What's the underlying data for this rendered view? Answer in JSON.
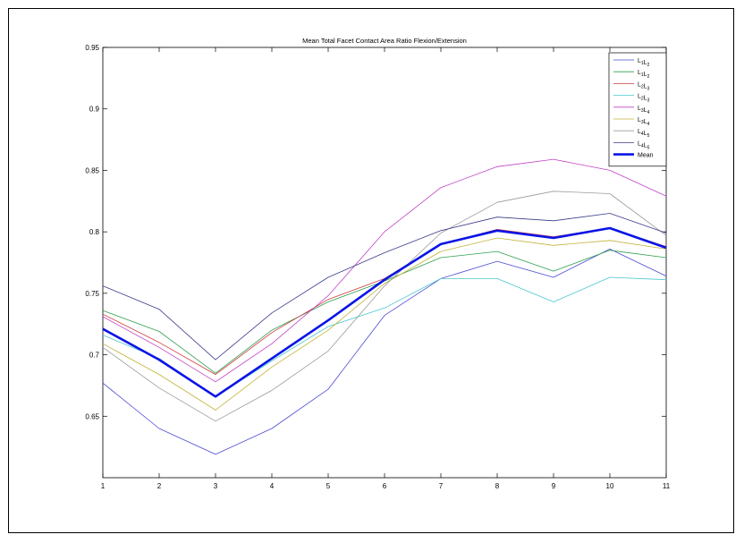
{
  "chart_data": {
    "type": "line",
    "title": "Mean Total Facet Contact Area Ratio Flexion/Extension",
    "xlabel": "",
    "ylabel": "",
    "x": [
      1,
      2,
      3,
      4,
      5,
      6,
      7,
      8,
      9,
      10,
      11
    ],
    "xlim": [
      1,
      11
    ],
    "ylim": [
      0.6,
      0.95
    ],
    "xticks": [
      "1",
      "2",
      "3",
      "4",
      "5",
      "6",
      "7",
      "8",
      "9",
      "10",
      "11"
    ],
    "yticks": [
      "0.65",
      "0.7",
      "0.75",
      "0.8",
      "0.85",
      "0.9",
      "0.95"
    ],
    "ytick_values": [
      0.65,
      0.7,
      0.75,
      0.8,
      0.85,
      0.9,
      0.95
    ],
    "grid": false,
    "legend_position": "top-right",
    "series": [
      {
        "name": "L1L2",
        "label_main": [
          "L",
          "L"
        ],
        "label_sub": [
          "1",
          "2"
        ],
        "color": "#4a4ad6",
        "width": 0.8,
        "values": [
          0.677,
          0.64,
          0.619,
          0.64,
          0.672,
          0.732,
          0.762,
          0.776,
          0.763,
          0.786,
          0.764
        ]
      },
      {
        "name": "L1L2",
        "label_main": [
          "L",
          "L"
        ],
        "label_sub": [
          "1",
          "2"
        ],
        "color": "#2ea04e",
        "width": 0.8,
        "values": [
          0.736,
          0.719,
          0.685,
          0.72,
          0.743,
          0.76,
          0.779,
          0.784,
          0.768,
          0.785,
          0.779
        ]
      },
      {
        "name": "L2L3",
        "label_main": [
          "L",
          "L"
        ],
        "label_sub": [
          "2",
          "3"
        ],
        "color": "#cc3a3a",
        "width": 0.8,
        "values": [
          0.733,
          0.71,
          0.684,
          0.718,
          0.745,
          0.762,
          0.79,
          0.802,
          0.796,
          0.803,
          0.788
        ]
      },
      {
        "name": "L2L3",
        "label_main": [
          "L",
          "L"
        ],
        "label_sub": [
          "2",
          "3"
        ],
        "color": "#4ac6d0",
        "width": 0.8,
        "values": [
          0.716,
          0.697,
          0.666,
          0.695,
          0.723,
          0.738,
          0.762,
          0.762,
          0.743,
          0.763,
          0.761
        ]
      },
      {
        "name": "L3L4",
        "label_main": [
          "L",
          "L"
        ],
        "label_sub": [
          "3",
          "4"
        ],
        "color": "#c040c8",
        "width": 0.8,
        "values": [
          0.731,
          0.706,
          0.678,
          0.709,
          0.748,
          0.8,
          0.836,
          0.853,
          0.859,
          0.85,
          0.829
        ]
      },
      {
        "name": "L3L4",
        "label_main": [
          "L",
          "L"
        ],
        "label_sub": [
          "3",
          "4"
        ],
        "color": "#c0b43a",
        "width": 0.8,
        "values": [
          0.709,
          0.684,
          0.655,
          0.69,
          0.72,
          0.758,
          0.784,
          0.795,
          0.789,
          0.793,
          0.786
        ]
      },
      {
        "name": "L4L5",
        "label_main": [
          "L",
          "L"
        ],
        "label_sub": [
          "4",
          "5"
        ],
        "color": "#9a9a9a",
        "width": 0.8,
        "values": [
          0.706,
          0.673,
          0.646,
          0.671,
          0.703,
          0.756,
          0.799,
          0.824,
          0.833,
          0.831,
          0.797
        ]
      },
      {
        "name": "L4L5",
        "label_main": [
          "L",
          "L"
        ],
        "label_sub": [
          "4",
          "5"
        ],
        "color": "#3a3a8a",
        "width": 0.8,
        "values": [
          0.756,
          0.737,
          0.696,
          0.734,
          0.763,
          0.783,
          0.801,
          0.812,
          0.809,
          0.815,
          0.799
        ]
      },
      {
        "name": "Mean",
        "label_main": [
          "Mean"
        ],
        "label_sub": [],
        "color": "#0a14e6",
        "width": 2.6,
        "values": [
          0.721,
          0.696,
          0.666,
          0.697,
          0.728,
          0.761,
          0.79,
          0.801,
          0.795,
          0.803,
          0.787
        ]
      }
    ]
  }
}
